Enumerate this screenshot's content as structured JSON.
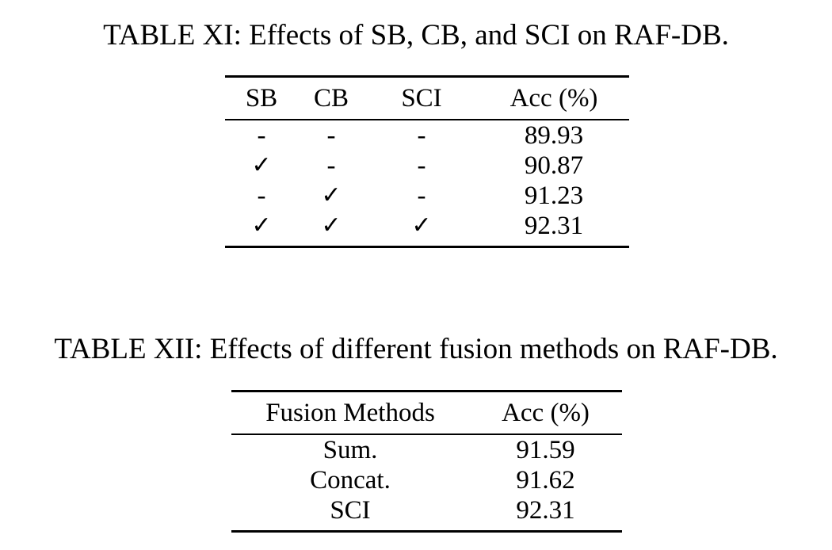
{
  "table11": {
    "caption": "TABLE XI: Effects of SB, CB, and SCI on RAF-DB.",
    "headers": [
      "SB",
      "CB",
      "SCI",
      "Acc (%)"
    ],
    "rows": [
      [
        "-",
        "-",
        "-",
        "89.93"
      ],
      [
        "✓",
        "-",
        "-",
        "90.87"
      ],
      [
        "-",
        "✓",
        "-",
        "91.23"
      ],
      [
        "✓",
        "✓",
        "✓",
        "92.31"
      ]
    ],
    "bold_row_index": 3
  },
  "table12": {
    "caption": "TABLE XII: Effects of different fusion methods on RAF-DB.",
    "headers": [
      "Fusion Methods",
      "Acc (%)"
    ],
    "rows": [
      [
        "Sum.",
        "91.59"
      ],
      [
        "Concat.",
        "91.62"
      ],
      [
        "SCI",
        "92.31"
      ]
    ],
    "bold_row_index": 2
  }
}
